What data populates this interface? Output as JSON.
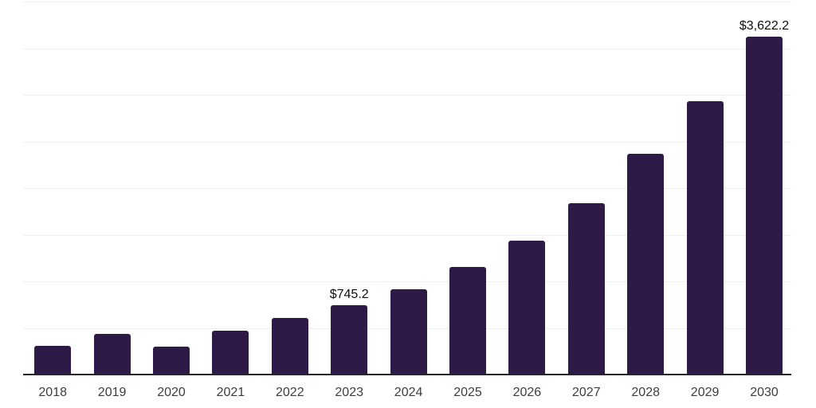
{
  "chart_data": {
    "type": "bar",
    "title": "",
    "xlabel": "",
    "ylabel": "",
    "categories": [
      "2018",
      "2019",
      "2020",
      "2021",
      "2022",
      "2023",
      "2024",
      "2025",
      "2026",
      "2027",
      "2028",
      "2029",
      "2030"
    ],
    "values": [
      310,
      440,
      297,
      470,
      605,
      745.2,
      915,
      1155,
      1435,
      1840,
      2365,
      2935,
      3622.2
    ],
    "data_labels": [
      "",
      "",
      "",
      "",
      "",
      "$745.2",
      "",
      "",
      "",
      "",
      "",
      "",
      "$3,622.2"
    ],
    "ylim": [
      0,
      4000
    ],
    "gridline_step": 500,
    "grid": "horizontal",
    "legend": "none",
    "colors": {
      "bar": "#2e1a47",
      "axis_line": "#262626",
      "gridline": "#f0f0f0",
      "tick_label": "#3d3d3d",
      "data_label": "#0d0d0d",
      "background": "#ffffff"
    }
  }
}
